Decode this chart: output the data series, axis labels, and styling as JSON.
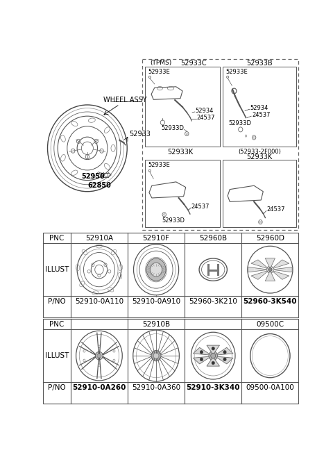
{
  "bg_color": "#ffffff",
  "line_color": "#555555",
  "text_color": "#000000",
  "table1_pnc": [
    "52910A",
    "52910F",
    "52960B",
    "52960D"
  ],
  "table1_pno": [
    "52910-0A110",
    "52910-0A910",
    "52960-3K210",
    "52960-3K540"
  ],
  "table1_pno_bold": [
    false,
    false,
    false,
    true
  ],
  "table2_pnc_left": "52910B",
  "table2_pnc_right": "09500C",
  "table2_pno": [
    "52910-0A260",
    "52910-0A360",
    "52910-3K340",
    "09500-0A100"
  ],
  "table2_pno_bold": [
    true,
    false,
    true,
    false
  ],
  "tpms_label": "(TPMS)",
  "box_c_label": "52933C",
  "box_b_label": "52933B",
  "box_k1_label": "52933K",
  "box_k2_label1": "(52933-2F000)",
  "box_k2_label2": "52933K",
  "wheel_assy_label": "WHEEL ASSY",
  "label_52933": "52933",
  "label_52950": "52950",
  "label_62850": "62850",
  "label_52933E": "52933E",
  "label_52933D": "52933D",
  "label_52934": "52934",
  "label_24537": "24537"
}
